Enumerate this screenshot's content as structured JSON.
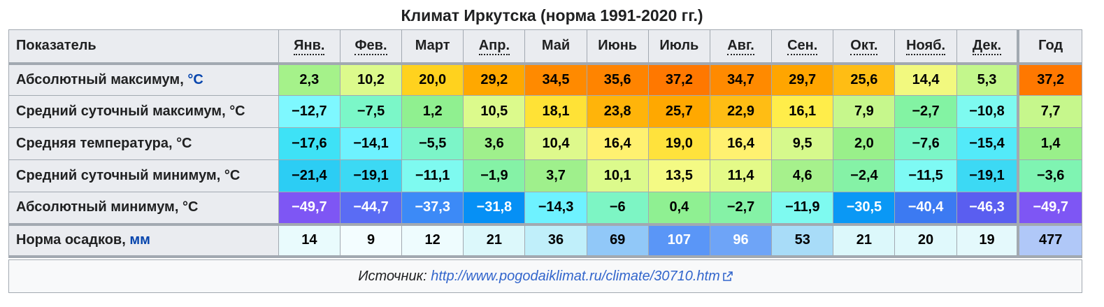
{
  "caption": "Климат Иркутска (норма 1991-2020 гг.)",
  "header": {
    "indicator": "Показатель",
    "months": [
      {
        "label": "Янв.",
        "abbr": true
      },
      {
        "label": "Фев.",
        "abbr": true
      },
      {
        "label": "Март",
        "abbr": false
      },
      {
        "label": "Апр.",
        "abbr": true
      },
      {
        "label": "Май",
        "abbr": false
      },
      {
        "label": "Июнь",
        "abbr": false
      },
      {
        "label": "Июль",
        "abbr": false
      },
      {
        "label": "Авг.",
        "abbr": true
      },
      {
        "label": "Сен.",
        "abbr": true
      },
      {
        "label": "Окт.",
        "abbr": true
      },
      {
        "label": "Нояб.",
        "abbr": true
      },
      {
        "label": "Дек.",
        "abbr": true
      }
    ],
    "year": "Год"
  },
  "rows": [
    {
      "label": "Абсолютный максимум, ",
      "unit": "°C",
      "unit_linked": true,
      "values": [
        "2,3",
        "10,2",
        "20,0",
        "29,2",
        "34,5",
        "35,6",
        "37,2",
        "34,7",
        "29,7",
        "25,6",
        "14,4",
        "5,3"
      ],
      "year": "37,2",
      "colors": [
        "#a5f28a",
        "#dcfa8c",
        "#ffd21e",
        "#ffa800",
        "#ff8a00",
        "#ff8400",
        "#ff7800",
        "#ff8a00",
        "#ffa500",
        "#ffbd14",
        "#f2f97f",
        "#c3f78c"
      ],
      "year_color": "#ff7800"
    },
    {
      "label": "Средний суточный максимум, ",
      "unit": "°C",
      "unit_linked": false,
      "values": [
        "−12,7",
        "−7,5",
        "1,2",
        "10,5",
        "18,1",
        "23,8",
        "25,7",
        "22,9",
        "16,1",
        "7,9",
        "−2,7",
        "−10,8"
      ],
      "year": "7,7",
      "colors": [
        "#7ef8ff",
        "#7bf7c8",
        "#90f090",
        "#dcfa8c",
        "#ffe236",
        "#ffb40a",
        "#ffa800",
        "#ffbd14",
        "#ffed4a",
        "#c6f78c",
        "#83f3a3",
        "#7efaf0"
      ],
      "year_color": "#c6f78c"
    },
    {
      "label": "Средняя температура, ",
      "unit": "°C",
      "unit_linked": false,
      "values": [
        "−17,6",
        "−14,1",
        "−5,5",
        "3,6",
        "10,4",
        "16,4",
        "19,0",
        "16,4",
        "9,5",
        "2,0",
        "−7,6",
        "−15,4"
      ],
      "year": "1,4",
      "colors": [
        "#3ee2f6",
        "#6ef2ff",
        "#7cf5c8",
        "#9ff08c",
        "#def98c",
        "#fff170",
        "#ffe23c",
        "#fff170",
        "#d6f98c",
        "#99f08a",
        "#7bf6c6",
        "#53eaf9"
      ],
      "year_color": "#99f08a"
    },
    {
      "label": "Средний суточный минимум, ",
      "unit": "°C",
      "unit_linked": false,
      "values": [
        "−21,4",
        "−19,1",
        "−11,1",
        "−1,9",
        "3,7",
        "10,1",
        "13,5",
        "11,4",
        "4,6",
        "−2,4",
        "−11,5",
        "−19,1"
      ],
      "year": "−3,6",
      "colors": [
        "#2ccdf4",
        "#3cd9f4",
        "#7efaf0",
        "#85f2a6",
        "#9ff08c",
        "#dcfa8c",
        "#f4fa84",
        "#e4fa88",
        "#a6f18c",
        "#85f2a6",
        "#7efaf4",
        "#3cd9f4"
      ],
      "year_color": "#7ff4b2"
    },
    {
      "label": "Абсолютный минимум, ",
      "unit": "°C",
      "unit_linked": false,
      "values": [
        "−49,7",
        "−44,7",
        "−37,3",
        "−31,8",
        "−14,3",
        "−6",
        "0,4",
        "−2,7",
        "−11,9",
        "−30,5",
        "−40,4",
        "−46,3"
      ],
      "year": "−49,7",
      "colors": [
        "#7e56f4",
        "#5a6cf4",
        "#3c8af7",
        "#0690f5",
        "#6ef2ff",
        "#7df5c4",
        "#8ff092",
        "#85f2a6",
        "#7efaf0",
        "#0a98f5",
        "#3c7af2",
        "#5a5ef0"
      ],
      "year_color": "#7e56f4",
      "white_text": [
        true,
        true,
        true,
        true,
        false,
        false,
        false,
        false,
        false,
        true,
        true,
        true
      ],
      "year_white_text": true
    },
    {
      "label": "Норма осадков, ",
      "unit": "мм",
      "unit_linked": true,
      "values": [
        "14",
        "9",
        "12",
        "21",
        "36",
        "69",
        "107",
        "96",
        "53",
        "21",
        "20",
        "19"
      ],
      "year": "477",
      "colors": [
        "#e9fbfd",
        "#f3fdff",
        "#eefcfe",
        "#dcf8fb",
        "#c0effa",
        "#91c8f8",
        "#5a96f7",
        "#6ea4f7",
        "#a8dcf8",
        "#dcf8fb",
        "#e0f9fc",
        "#e4f9fc"
      ],
      "year_color": "#b0c8f8",
      "white_text": [
        false,
        false,
        false,
        false,
        false,
        false,
        true,
        true,
        false,
        false,
        false,
        false
      ],
      "year_white_text": false
    }
  ],
  "source": {
    "label": "Источник: ",
    "link": "http://www.pogodaiklimat.ru/climate/30710.htm",
    "icon": "external-link-icon"
  }
}
